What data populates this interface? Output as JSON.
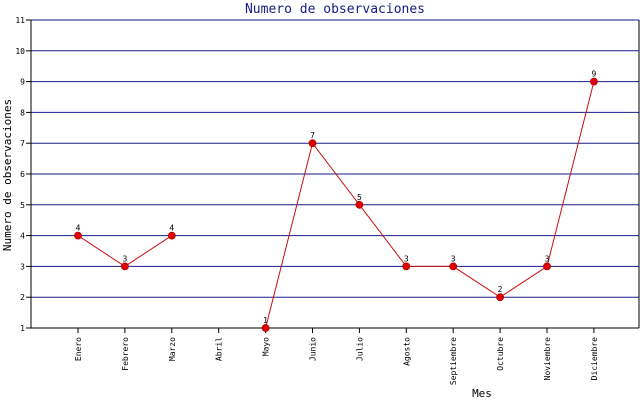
{
  "chart_data": {
    "type": "line",
    "title": "Numero de observaciones",
    "xlabel": "Mes",
    "ylabel": "Numero de observaciones",
    "categories": [
      "Enero",
      "Febrero",
      "Marzo",
      "Abril",
      "Mayo",
      "Junio",
      "Julio",
      "Agosto",
      "Septiembre",
      "Octubre",
      "Noviembre",
      "Diciembre"
    ],
    "series": [
      {
        "values": [
          4,
          3,
          4,
          null,
          1,
          7,
          5,
          3,
          3,
          2,
          3,
          9
        ]
      }
    ],
    "segments": [
      [
        0,
        2
      ],
      [
        4,
        11
      ]
    ],
    "ylim": [
      1,
      11
    ],
    "yticks": [
      1,
      2,
      3,
      4,
      5,
      6,
      7,
      8,
      9,
      10,
      11
    ],
    "grid": "horizontal",
    "data_labels": true,
    "colors": {
      "line": "#c81010",
      "marker": "#dd0000",
      "grid": "#1a1a8a",
      "title": "#1a1a8a",
      "axis": "#000000"
    }
  }
}
